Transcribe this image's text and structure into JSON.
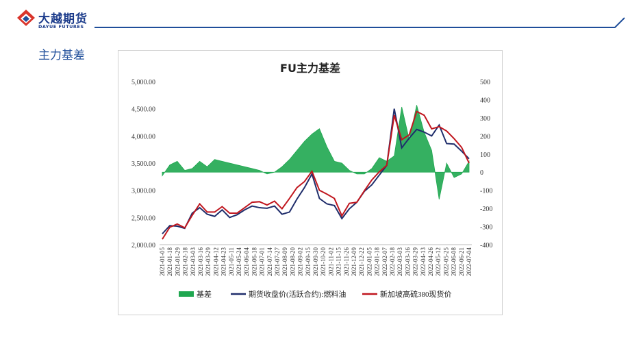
{
  "logo": {
    "cn": "大越期货",
    "en": "DAYUE FUTURES",
    "icon": "dayue-diamond-logo"
  },
  "section_title": "主力基差",
  "colors": {
    "basis": "#1fa750",
    "futures": "#1f2d6b",
    "spot": "#c0161e",
    "header_blue": "#1f4e9a",
    "logo_red": "#d9342b"
  },
  "chart_data": {
    "type": "line",
    "title": "FU主力基差",
    "x_ticks": [
      "2021-01-05",
      "2021-01-18",
      "2021-01-29",
      "2021-02-18",
      "2021-03-03",
      "2021-03-16",
      "2021-03-29",
      "2021-04-12",
      "2021-04-23",
      "2021-05-11",
      "2021-05-24",
      "2021-06-04",
      "2021-06-18",
      "2021-07-01",
      "2021-07-14",
      "2021-07-27",
      "2021-08-09",
      "2021-08-20",
      "2021-09-02",
      "2021-09-15",
      "2021-09-30",
      "2021-10-20",
      "2021-11-02",
      "2021-11-15",
      "2021-11-26",
      "2021-12-09",
      "2021-12-22",
      "2022-01-05",
      "2022-01-18",
      "2022-02-07",
      "2022-02-18",
      "2022-03-03",
      "2022-03-16",
      "2022-03-29",
      "2022-04-13",
      "2022-04-26",
      "2022-05-12",
      "2022-05-25",
      "2022-06-08",
      "2022-06-21",
      "2022-07-04"
    ],
    "y_left": {
      "ticks": [
        "5,000.00",
        "4,500.00",
        "4,000.00",
        "3,500.00",
        "3,000.00",
        "2,500.00",
        "2,000.00"
      ],
      "range": [
        2000,
        5000
      ]
    },
    "y_right": {
      "ticks": [
        "500",
        "400",
        "300",
        "200",
        "100",
        "0",
        "-100",
        "-200",
        "-300",
        "-400"
      ],
      "range": [
        -400,
        500
      ]
    },
    "series": [
      {
        "name": "基差",
        "axis": "right",
        "kind": "area",
        "values": [
          -20,
          40,
          60,
          10,
          20,
          60,
          30,
          70,
          60,
          50,
          40,
          30,
          20,
          10,
          -10,
          0,
          30,
          70,
          120,
          170,
          210,
          240,
          140,
          60,
          50,
          10,
          -10,
          -10,
          20,
          80,
          60,
          90,
          360,
          180,
          370,
          220,
          120,
          -150,
          50,
          -30,
          -10,
          60
        ]
      },
      {
        "name": "期货收盘价(活跃合约):燃料油",
        "axis": "left",
        "kind": "line",
        "values": [
          2200,
          2350,
          2340,
          2300,
          2580,
          2680,
          2560,
          2520,
          2640,
          2500,
          2550,
          2640,
          2710,
          2680,
          2670,
          2710,
          2560,
          2600,
          2840,
          3050,
          3300,
          2850,
          2750,
          2720,
          2480,
          2660,
          2780,
          2980,
          3100,
          3280,
          3460,
          4500,
          3780,
          3960,
          4120,
          4070,
          4000,
          4200,
          3860,
          3850,
          3720,
          3580
        ]
      },
      {
        "name": "新加坡高硫380现货价",
        "axis": "left",
        "kind": "line",
        "values": [
          2100,
          2320,
          2380,
          2310,
          2540,
          2750,
          2600,
          2600,
          2700,
          2580,
          2580,
          2680,
          2780,
          2790,
          2730,
          2800,
          2660,
          2850,
          3050,
          3160,
          3350,
          3000,
          2930,
          2850,
          2530,
          2760,
          2780,
          2990,
          3190,
          3340,
          3460,
          4380,
          3930,
          4020,
          4450,
          4380,
          4130,
          4170,
          4090,
          3950,
          3790,
          3500
        ]
      }
    ],
    "legend_position": "bottom",
    "grid": false
  }
}
